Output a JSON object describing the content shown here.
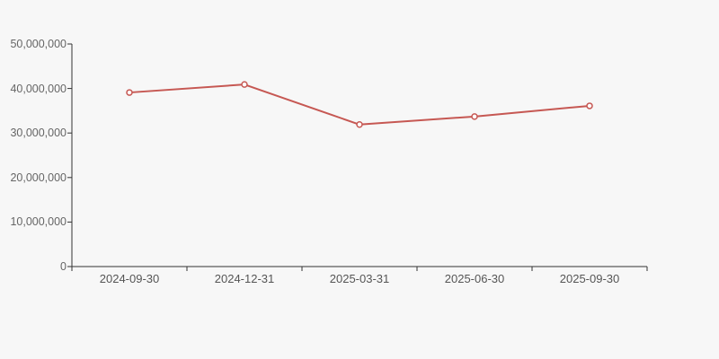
{
  "chart_data": {
    "type": "line",
    "title": "",
    "categories": [
      "2024-09-30",
      "2024-12-31",
      "2025-03-31",
      "2025-06-30",
      "2025-09-30"
    ],
    "values": [
      39100000,
      40900000,
      31900000,
      33700000,
      36100000
    ],
    "xlabel": "",
    "ylabel": "",
    "ylim": [
      0,
      50000000
    ],
    "y_tick_values": [
      0,
      10000000,
      20000000,
      30000000,
      40000000,
      50000000
    ],
    "y_tick_labels": [
      "0",
      "10,000,000",
      "20,000,000",
      "30,000,000",
      "40,000,000",
      "50,000,000"
    ],
    "grid": false,
    "legend": "none",
    "marker": "open-circle",
    "colors": {
      "line": "#c65853",
      "marker_fill": "#ffffff",
      "axis": "#333333",
      "y_tick_label": "#666666",
      "x_tick_label": "#555555",
      "background": "#f7f7f7"
    }
  }
}
